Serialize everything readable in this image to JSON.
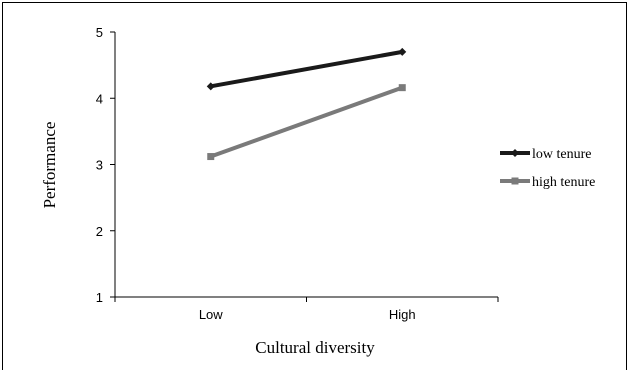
{
  "chart_data": {
    "type": "line",
    "categories": [
      "Low",
      "High"
    ],
    "series": [
      {
        "name": "low tenure",
        "values": [
          4.18,
          4.7
        ],
        "color": "#1a1a1a",
        "marker": "diamond"
      },
      {
        "name": "high tenure",
        "values": [
          3.12,
          4.16
        ],
        "color": "#7a7a7a",
        "marker": "square"
      }
    ],
    "title": "",
    "xlabel": "Cultural diversity",
    "ylabel": "Performance",
    "ylim": [
      1,
      5
    ],
    "yticks": [
      1,
      2,
      3,
      4,
      5
    ],
    "grid": false,
    "legend": "right"
  }
}
